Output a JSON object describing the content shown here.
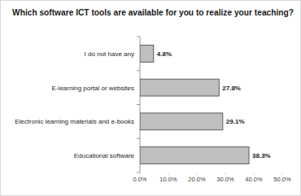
{
  "chart_data": {
    "type": "bar",
    "orientation": "horizontal",
    "title": "Which software ICT tools are available for you to realize your teaching?",
    "categories": [
      "I do not have any",
      "E-learning portal or websites",
      "Electronic learning materials and e-books",
      "Educational software"
    ],
    "values": [
      4.8,
      27.8,
      29.1,
      38.3
    ],
    "value_labels": [
      "4.8%",
      "27.8%",
      "29.1%",
      "38.3%"
    ],
    "color": "#bfbfbf",
    "xlim": [
      0,
      50
    ],
    "xticks": [
      {
        "value": 0,
        "label": "0.0%"
      },
      {
        "value": 10,
        "label": "10.0%"
      },
      {
        "value": 20,
        "label": "20.0%"
      },
      {
        "value": 30,
        "label": "30.0%"
      },
      {
        "value": 40,
        "label": "40.0%"
      },
      {
        "value": 50,
        "label": "50.0%"
      }
    ],
    "data_labels": true,
    "grid": false
  }
}
